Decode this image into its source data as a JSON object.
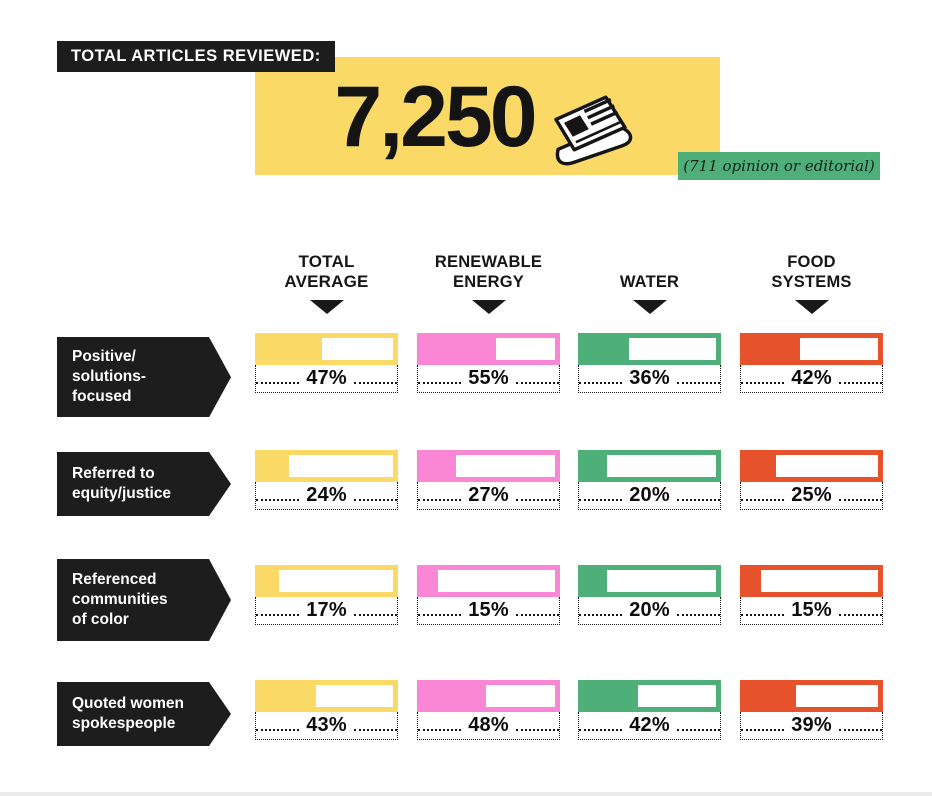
{
  "header": {
    "label": "TOTAL ARTICLES REVIEWED:",
    "total": "7,250",
    "badge": "(711 opinion or editorial)"
  },
  "colors": {
    "yellow": "#FBD967",
    "pink": "#FA86D6",
    "green": "#4FAF79",
    "orange": "#E5522C",
    "ink": "#1D1D1D"
  },
  "columns": [
    {
      "label": "TOTAL\nAVERAGE"
    },
    {
      "label": "RENEWABLE\nENERGY"
    },
    {
      "label": "WATER"
    },
    {
      "label": "FOOD\nSYSTEMS"
    }
  ],
  "rows": [
    {
      "label": "Positive/\nsolutions-focused",
      "cells": [
        {
          "pct": "47%",
          "value": 47
        },
        {
          "pct": "55%",
          "value": 55
        },
        {
          "pct": "36%",
          "value": 36
        },
        {
          "pct": "42%",
          "value": 42
        }
      ]
    },
    {
      "label": "Referred to\nequity/justice",
      "cells": [
        {
          "pct": "24%",
          "value": 24
        },
        {
          "pct": "27%",
          "value": 27
        },
        {
          "pct": "20%",
          "value": 20
        },
        {
          "pct": "25%",
          "value": 25
        }
      ]
    },
    {
      "label": "Referenced\ncommunities\nof color",
      "cells": [
        {
          "pct": "17%",
          "value": 17
        },
        {
          "pct": "15%",
          "value": 15
        },
        {
          "pct": "20%",
          "value": 20
        },
        {
          "pct": "15%",
          "value": 15
        }
      ]
    },
    {
      "label": "Quoted women\nspokespeople",
      "cells": [
        {
          "pct": "43%",
          "value": 43
        },
        {
          "pct": "48%",
          "value": 48
        },
        {
          "pct": "42%",
          "value": 42
        },
        {
          "pct": "39%",
          "value": 39
        }
      ]
    }
  ],
  "chart_data": {
    "type": "bar",
    "title": "TOTAL ARTICLES REVIEWED: 7,250 (711 opinion or editorial)",
    "total_articles": 7250,
    "opinion_or_editorial": 711,
    "unit": "%",
    "xlim": [
      0,
      100
    ],
    "categories": [
      "Positive/solutions-focused",
      "Referred to equity/justice",
      "Referenced communities of color",
      "Quoted women spokespeople"
    ],
    "series": [
      {
        "name": "TOTAL AVERAGE",
        "color": "#FBD967",
        "values": [
          47,
          24,
          17,
          43
        ]
      },
      {
        "name": "RENEWABLE ENERGY",
        "color": "#FA86D6",
        "values": [
          55,
          27,
          15,
          48
        ]
      },
      {
        "name": "WATER",
        "color": "#4FAF79",
        "values": [
          36,
          20,
          20,
          42
        ]
      },
      {
        "name": "FOOD SYSTEMS",
        "color": "#E5522C",
        "values": [
          42,
          25,
          15,
          39
        ]
      }
    ]
  }
}
